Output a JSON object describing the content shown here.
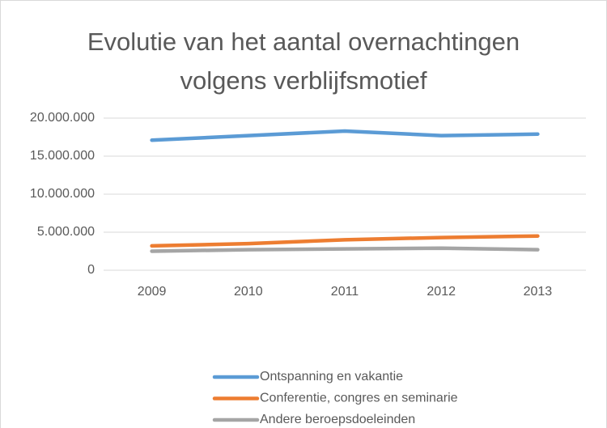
{
  "chart_data": {
    "type": "line",
    "title": "Evolutie van het aantal overnachtingen volgens verblijfsmotief",
    "categories": [
      "2009",
      "2010",
      "2011",
      "2012",
      "2013"
    ],
    "series": [
      {
        "name": "Ontspanning en vakantie",
        "color": "#5b9bd5",
        "values": [
          17100000,
          17700000,
          18300000,
          17700000,
          17900000
        ]
      },
      {
        "name": "Conferentie, congres en seminarie",
        "color": "#ed7d31",
        "values": [
          3200000,
          3500000,
          4000000,
          4300000,
          4500000
        ]
      },
      {
        "name": "Andere beroepsdoeleinden",
        "color": "#a5a5a5",
        "values": [
          2500000,
          2700000,
          2800000,
          2900000,
          2700000
        ]
      }
    ],
    "ylim": [
      0,
      20000000
    ],
    "yticks": [
      0,
      {
        "value": 5000000,
        "label": "5.000.000"
      },
      {
        "value": 10000000,
        "label": "10.000.000"
      },
      {
        "value": 15000000,
        "label": "15.000.000"
      },
      {
        "value": 20000000,
        "label": "20.000.000"
      }
    ],
    "grid": true,
    "legend": "bottom"
  }
}
